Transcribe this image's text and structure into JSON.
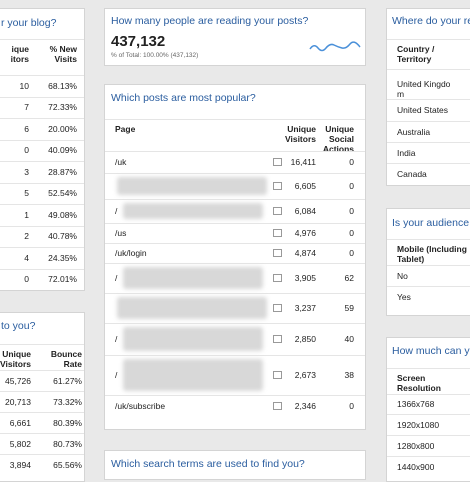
{
  "blog": {
    "title": "r your blog?",
    "headers": [
      "ique\nitors",
      "% New\nVisits"
    ],
    "rows": [
      [
        "10",
        "68.13%"
      ],
      [
        "7",
        "72.33%"
      ],
      [
        "6",
        "20.00%"
      ],
      [
        "0",
        "40.09%"
      ],
      [
        "3",
        "28.87%"
      ],
      [
        "5",
        "52.54%"
      ],
      [
        "1",
        "49.08%"
      ],
      [
        "2",
        "40.78%"
      ],
      [
        "4",
        "24.35%"
      ],
      [
        "0",
        "72.01%"
      ]
    ]
  },
  "find": {
    "title": "to you?",
    "headers": [
      "Unique\nVisitors",
      "Bounce\nRate"
    ],
    "rows": [
      [
        "45,726",
        "61.27%"
      ],
      [
        "20,713",
        "73.32%"
      ],
      [
        "6,661",
        "80.39%"
      ],
      [
        "5,802",
        "80.73%"
      ],
      [
        "3,894",
        "65.56%"
      ]
    ]
  },
  "readers": {
    "title": "How many people are reading your posts?",
    "total": "437,132",
    "subtitle": "% of Total: 100.00% (437,132)"
  },
  "posts": {
    "title": "Which posts are most popular?",
    "headers": [
      "Page",
      "Unique\nVisitors",
      "Unique\nSocial\nActions"
    ],
    "rows": [
      [
        "/uk",
        "16,411",
        "0"
      ],
      [
        null,
        "6,605",
        "0"
      ],
      [
        "/",
        "6,084",
        "0"
      ],
      [
        "/us",
        "4,976",
        "0"
      ],
      [
        "/uk/login",
        "4,874",
        "0"
      ],
      [
        "/",
        "3,905",
        "62"
      ],
      [
        null,
        "3,237",
        "59"
      ],
      [
        "/",
        "2,850",
        "40"
      ],
      [
        "/",
        "2,673",
        "38"
      ],
      [
        "/uk/subscribe",
        "2,346",
        "0"
      ]
    ]
  },
  "search": {
    "title": "Which search terms are used to find you?"
  },
  "country": {
    "title": "Where do your re",
    "headers": [
      "Country /\nTerritory"
    ],
    "rows": [
      [
        "United Kingdo\nm"
      ],
      [
        "United States"
      ],
      [
        "Australia"
      ],
      [
        "India"
      ],
      [
        "Canada"
      ]
    ]
  },
  "mobile": {
    "title": "Is your audience r",
    "headers": [
      "Mobile (Including\nTablet)"
    ],
    "rows": [
      [
        "No"
      ],
      [
        "Yes"
      ]
    ]
  },
  "screen": {
    "title": "How much can you",
    "headers": [
      "Screen\nResolution"
    ],
    "rows": [
      [
        "1366x768"
      ],
      [
        "1920x1080"
      ],
      [
        "1280x800"
      ],
      [
        "1440x900"
      ]
    ]
  }
}
